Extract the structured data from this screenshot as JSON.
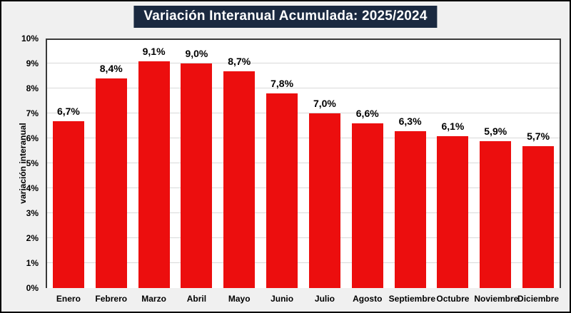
{
  "chart_data": {
    "type": "bar",
    "title": "Variación Interanual Acumulada: 2025/2024",
    "ylabel": "variación interanual",
    "xlabel": "",
    "categories": [
      "Enero",
      "Febrero",
      "Marzo",
      "Abril",
      "Mayo",
      "Junio",
      "Julio",
      "Agosto",
      "Septiembre",
      "Octubre",
      "Noviembre",
      "Diciembre"
    ],
    "values": [
      6.7,
      8.4,
      9.1,
      9.0,
      8.7,
      7.8,
      7.0,
      6.6,
      6.3,
      6.1,
      5.9,
      5.7
    ],
    "value_labels": [
      "6,7%",
      "8,4%",
      "9,1%",
      "9,0%",
      "8,7%",
      "7,8%",
      "7,0%",
      "6,6%",
      "6,3%",
      "6,1%",
      "5,9%",
      "5,7%"
    ],
    "ylim": [
      0,
      10
    ],
    "ytick_step": 1,
    "ytick_labels": [
      "0%",
      "1%",
      "2%",
      "3%",
      "4%",
      "5%",
      "6%",
      "7%",
      "8%",
      "9%",
      "10%"
    ],
    "grid": "horizontal",
    "legend": "none",
    "colors": {
      "bar": "#ec0e0e",
      "title_bg": "#1a2940",
      "title_text": "#ffffff",
      "page_bg": "#f0f0f0",
      "plot_bg": "#ffffff",
      "frame": "#3a3a3a",
      "gridline": "#d9d9d9",
      "outer_border": "#000000",
      "text": "#000000"
    }
  }
}
